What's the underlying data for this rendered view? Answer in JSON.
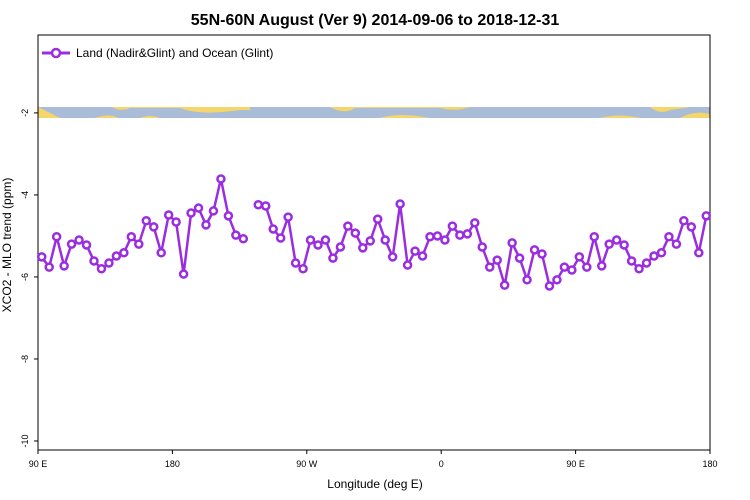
{
  "chart_data": {
    "type": "line",
    "title": "55N-60N August (Ver 9)   2014-09-06 to 2018-12-31",
    "x_label": "Longitude (deg E)",
    "y_label": "XCO2 - MLO trend (ppm)",
    "x": [
      92.5,
      97.5,
      102.5,
      107.5,
      112.5,
      117.5,
      122.5,
      127.5,
      132.5,
      137.5,
      142.5,
      147.5,
      152.5,
      157.5,
      162.5,
      167.5,
      172.5,
      177.5,
      182.5,
      187.5,
      192.5,
      197.5,
      202.5,
      207.5,
      212.5,
      217.5,
      222.5,
      227.5,
      232.5,
      237.5,
      242.5,
      247.5,
      252.5,
      257.5,
      262.5,
      267.5,
      272.5,
      277.5,
      282.5,
      287.5,
      292.5,
      297.5,
      302.5,
      307.5,
      312.5,
      317.5,
      322.5,
      327.5,
      332.5,
      337.5,
      342.5,
      347.5,
      352.5,
      357.5,
      362.5,
      367.5,
      372.5,
      377.5,
      382.5,
      387.5,
      392.5,
      397.5,
      402.5,
      407.5,
      412.5,
      417.5,
      422.5,
      427.5,
      432.5,
      437.5,
      442.5,
      447.5,
      452.5,
      457.5,
      462.5,
      467.5,
      472.5,
      477.5,
      482.5,
      487.5,
      492.5,
      497.5,
      502.5,
      507.5,
      512.5,
      517.5,
      522.5,
      527.5,
      532.5,
      537.5
    ],
    "series": [
      {
        "name": "Land (Nadir&Glint) and Ocean (Glint)",
        "color": "#9b2de0",
        "values": [
          -5.51,
          -5.76,
          -5.02,
          -5.73,
          -5.2,
          -5.1,
          -5.22,
          -5.61,
          -5.8,
          -5.66,
          -5.49,
          -5.41,
          -5.02,
          -5.2,
          -4.63,
          -4.78,
          -5.41,
          -4.49,
          -4.66,
          -5.93,
          -4.44,
          -4.32,
          -4.73,
          -4.39,
          -3.61,
          -4.51,
          -4.98,
          -5.07,
          null,
          -4.24,
          -4.27,
          -4.83,
          -5.05,
          -4.54,
          -5.66,
          -5.8,
          -5.1,
          -5.22,
          -5.1,
          -5.54,
          -5.27,
          -4.76,
          -4.93,
          -5.29,
          -5.12,
          -4.59,
          -5.1,
          -5.51,
          -4.22,
          -5.71,
          -5.37,
          -5.49,
          -5.02,
          -5.0,
          -5.1,
          -4.76,
          -4.98,
          -4.95,
          -4.68,
          -5.27,
          -5.76,
          -5.59,
          -6.2,
          -5.17,
          -5.54,
          -6.07,
          -5.34,
          -5.44,
          -6.22,
          -6.07,
          -5.76,
          -5.83,
          -5.51,
          -5.76,
          -5.02,
          -5.73,
          -5.2,
          -5.1,
          -5.22,
          -5.61,
          -5.8,
          -5.66,
          -5.49,
          -5.41,
          -5.02,
          -5.2,
          -4.63,
          -4.78,
          -5.41,
          -4.51
        ]
      }
    ],
    "xlim": [
      90,
      540
    ],
    "xticks": [
      {
        "value": 90,
        "label": "90 E"
      },
      {
        "value": 180,
        "label": "180"
      },
      {
        "value": 270,
        "label": "90 W"
      },
      {
        "value": 360,
        "label": "0"
      },
      {
        "value": 450,
        "label": "90 E"
      },
      {
        "value": 540,
        "label": "180"
      }
    ],
    "ylim": [
      -10.22,
      -0.1
    ],
    "yticks": [
      -10,
      -8,
      -6,
      -4,
      -2
    ],
    "legend": "top-left"
  }
}
